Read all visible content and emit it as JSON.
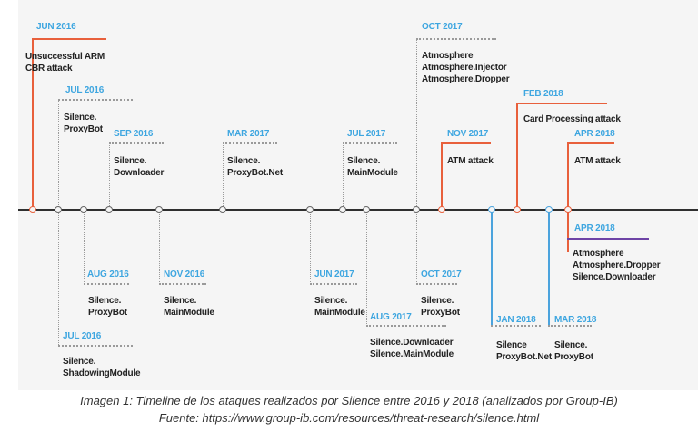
{
  "events": [
    {
      "id": "jun2016",
      "date": "JUN 2016",
      "desc": "Unsuccessful ARM\nCBR attack",
      "side": "above",
      "color": "orange"
    },
    {
      "id": "jul2016a",
      "date": "JUL 2016",
      "desc": "Silence.\nProxyBot",
      "side": "above",
      "color": "grey"
    },
    {
      "id": "sep2016",
      "date": "SEP 2016",
      "desc": "Silence.\nDownloader",
      "side": "above",
      "color": "grey"
    },
    {
      "id": "mar2017",
      "date": "MAR 2017",
      "desc": "Silence.\nProxyBot.Net",
      "side": "above",
      "color": "grey"
    },
    {
      "id": "jul2017",
      "date": "JUL 2017",
      "desc": "Silence.\nMainModule",
      "side": "above",
      "color": "grey"
    },
    {
      "id": "oct2017a",
      "date": "OCT 2017",
      "desc": "Atmosphere\nAtmosphere.Injector\nAtmosphere.Dropper",
      "side": "above",
      "color": "grey"
    },
    {
      "id": "nov2017",
      "date": "NOV 2017",
      "desc": "ATM attack",
      "side": "above",
      "color": "orange"
    },
    {
      "id": "feb2018",
      "date": "FEB 2018",
      "desc": "Card Processing attack",
      "side": "above",
      "color": "orange"
    },
    {
      "id": "apr2018a",
      "date": "APR 2018",
      "desc": "ATM attack",
      "side": "above",
      "color": "orange"
    },
    {
      "id": "apr2018b",
      "date": "APR 2018",
      "desc": "Atmosphere\nAtmosphere.Dropper\nSilence.Downloader",
      "side": "below",
      "color": "purple"
    },
    {
      "id": "aug2016",
      "date": "AUG 2016",
      "desc": "Silence.\nProxyBot",
      "side": "below",
      "color": "grey"
    },
    {
      "id": "nov2016",
      "date": "NOV 2016",
      "desc": "Silence.\nMainModule",
      "side": "below",
      "color": "grey"
    },
    {
      "id": "jul2016b",
      "date": "JUL 2016",
      "desc": "Silence.\nShadowingModule",
      "side": "below",
      "color": "grey"
    },
    {
      "id": "jun2017",
      "date": "JUN 2017",
      "desc": "Silence.\nMainModule",
      "side": "below",
      "color": "grey"
    },
    {
      "id": "aug2017",
      "date": "AUG 2017",
      "desc": "Silence.Downloader\nSilence.MainModule",
      "side": "below",
      "color": "grey"
    },
    {
      "id": "oct2017b",
      "date": "OCT 2017",
      "desc": "Silence.\nProxyBot",
      "side": "below",
      "color": "grey"
    },
    {
      "id": "jan2018",
      "date": "JAN 2018",
      "desc": "Silence\nProxyBot.Net",
      "side": "below",
      "color": "blue"
    },
    {
      "id": "mar2018",
      "date": "MAR 2018",
      "desc": "Silence.\nProxyBot",
      "side": "below",
      "color": "blue"
    }
  ],
  "caption": {
    "line1": "Imagen 1: Timeline de los ataques realizados por Silence entre 2016 y 2018 (analizados por Group-IB)",
    "line2": "Fuente: https://www.group-ib.com/resources/threat-research/silence.html"
  }
}
